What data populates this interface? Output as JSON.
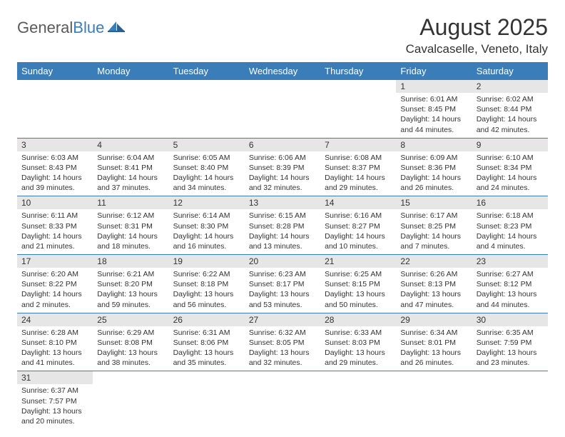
{
  "logo": {
    "general": "General",
    "blue": "Blue"
  },
  "title": "August 2025",
  "location": "Cavalcaselle, Veneto, Italy",
  "colors": {
    "header_bg": "#3a7db8",
    "header_text": "#ffffff",
    "daynum_bg": "#e6e6e6",
    "text": "#333333",
    "border": "#3a7db8"
  },
  "weekdays": [
    "Sunday",
    "Monday",
    "Tuesday",
    "Wednesday",
    "Thursday",
    "Friday",
    "Saturday"
  ],
  "weeks": [
    [
      null,
      null,
      null,
      null,
      null,
      {
        "n": "1",
        "sr": "Sunrise: 6:01 AM",
        "ss": "Sunset: 8:45 PM",
        "dl": "Daylight: 14 hours and 44 minutes."
      },
      {
        "n": "2",
        "sr": "Sunrise: 6:02 AM",
        "ss": "Sunset: 8:44 PM",
        "dl": "Daylight: 14 hours and 42 minutes."
      }
    ],
    [
      {
        "n": "3",
        "sr": "Sunrise: 6:03 AM",
        "ss": "Sunset: 8:43 PM",
        "dl": "Daylight: 14 hours and 39 minutes."
      },
      {
        "n": "4",
        "sr": "Sunrise: 6:04 AM",
        "ss": "Sunset: 8:41 PM",
        "dl": "Daylight: 14 hours and 37 minutes."
      },
      {
        "n": "5",
        "sr": "Sunrise: 6:05 AM",
        "ss": "Sunset: 8:40 PM",
        "dl": "Daylight: 14 hours and 34 minutes."
      },
      {
        "n": "6",
        "sr": "Sunrise: 6:06 AM",
        "ss": "Sunset: 8:39 PM",
        "dl": "Daylight: 14 hours and 32 minutes."
      },
      {
        "n": "7",
        "sr": "Sunrise: 6:08 AM",
        "ss": "Sunset: 8:37 PM",
        "dl": "Daylight: 14 hours and 29 minutes."
      },
      {
        "n": "8",
        "sr": "Sunrise: 6:09 AM",
        "ss": "Sunset: 8:36 PM",
        "dl": "Daylight: 14 hours and 26 minutes."
      },
      {
        "n": "9",
        "sr": "Sunrise: 6:10 AM",
        "ss": "Sunset: 8:34 PM",
        "dl": "Daylight: 14 hours and 24 minutes."
      }
    ],
    [
      {
        "n": "10",
        "sr": "Sunrise: 6:11 AM",
        "ss": "Sunset: 8:33 PM",
        "dl": "Daylight: 14 hours and 21 minutes."
      },
      {
        "n": "11",
        "sr": "Sunrise: 6:12 AM",
        "ss": "Sunset: 8:31 PM",
        "dl": "Daylight: 14 hours and 18 minutes."
      },
      {
        "n": "12",
        "sr": "Sunrise: 6:14 AM",
        "ss": "Sunset: 8:30 PM",
        "dl": "Daylight: 14 hours and 16 minutes."
      },
      {
        "n": "13",
        "sr": "Sunrise: 6:15 AM",
        "ss": "Sunset: 8:28 PM",
        "dl": "Daylight: 14 hours and 13 minutes."
      },
      {
        "n": "14",
        "sr": "Sunrise: 6:16 AM",
        "ss": "Sunset: 8:27 PM",
        "dl": "Daylight: 14 hours and 10 minutes."
      },
      {
        "n": "15",
        "sr": "Sunrise: 6:17 AM",
        "ss": "Sunset: 8:25 PM",
        "dl": "Daylight: 14 hours and 7 minutes."
      },
      {
        "n": "16",
        "sr": "Sunrise: 6:18 AM",
        "ss": "Sunset: 8:23 PM",
        "dl": "Daylight: 14 hours and 4 minutes."
      }
    ],
    [
      {
        "n": "17",
        "sr": "Sunrise: 6:20 AM",
        "ss": "Sunset: 8:22 PM",
        "dl": "Daylight: 14 hours and 2 minutes."
      },
      {
        "n": "18",
        "sr": "Sunrise: 6:21 AM",
        "ss": "Sunset: 8:20 PM",
        "dl": "Daylight: 13 hours and 59 minutes."
      },
      {
        "n": "19",
        "sr": "Sunrise: 6:22 AM",
        "ss": "Sunset: 8:18 PM",
        "dl": "Daylight: 13 hours and 56 minutes."
      },
      {
        "n": "20",
        "sr": "Sunrise: 6:23 AM",
        "ss": "Sunset: 8:17 PM",
        "dl": "Daylight: 13 hours and 53 minutes."
      },
      {
        "n": "21",
        "sr": "Sunrise: 6:25 AM",
        "ss": "Sunset: 8:15 PM",
        "dl": "Daylight: 13 hours and 50 minutes."
      },
      {
        "n": "22",
        "sr": "Sunrise: 6:26 AM",
        "ss": "Sunset: 8:13 PM",
        "dl": "Daylight: 13 hours and 47 minutes."
      },
      {
        "n": "23",
        "sr": "Sunrise: 6:27 AM",
        "ss": "Sunset: 8:12 PM",
        "dl": "Daylight: 13 hours and 44 minutes."
      }
    ],
    [
      {
        "n": "24",
        "sr": "Sunrise: 6:28 AM",
        "ss": "Sunset: 8:10 PM",
        "dl": "Daylight: 13 hours and 41 minutes."
      },
      {
        "n": "25",
        "sr": "Sunrise: 6:29 AM",
        "ss": "Sunset: 8:08 PM",
        "dl": "Daylight: 13 hours and 38 minutes."
      },
      {
        "n": "26",
        "sr": "Sunrise: 6:31 AM",
        "ss": "Sunset: 8:06 PM",
        "dl": "Daylight: 13 hours and 35 minutes."
      },
      {
        "n": "27",
        "sr": "Sunrise: 6:32 AM",
        "ss": "Sunset: 8:05 PM",
        "dl": "Daylight: 13 hours and 32 minutes."
      },
      {
        "n": "28",
        "sr": "Sunrise: 6:33 AM",
        "ss": "Sunset: 8:03 PM",
        "dl": "Daylight: 13 hours and 29 minutes."
      },
      {
        "n": "29",
        "sr": "Sunrise: 6:34 AM",
        "ss": "Sunset: 8:01 PM",
        "dl": "Daylight: 13 hours and 26 minutes."
      },
      {
        "n": "30",
        "sr": "Sunrise: 6:35 AM",
        "ss": "Sunset: 7:59 PM",
        "dl": "Daylight: 13 hours and 23 minutes."
      }
    ],
    [
      {
        "n": "31",
        "sr": "Sunrise: 6:37 AM",
        "ss": "Sunset: 7:57 PM",
        "dl": "Daylight: 13 hours and 20 minutes."
      },
      null,
      null,
      null,
      null,
      null,
      null
    ]
  ]
}
